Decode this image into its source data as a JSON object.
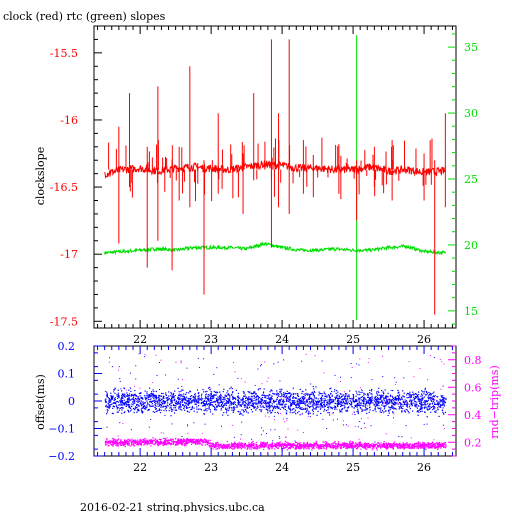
{
  "title": "clock (red) rtc (green) slopes",
  "footer": "2016-02-21 string.physics.ubc.ca",
  "colors": {
    "clock": "#ff0000",
    "rtc": "#00dd00",
    "offset": "#0000ff",
    "rtt": "#ff00ff",
    "axis": "#000000"
  },
  "chart_data": [
    {
      "type": "line",
      "panel": "top",
      "title": "clock (red) rtc (green) slopes",
      "xlabel": "",
      "ylabel": "clockslope",
      "xlim": [
        21.35,
        26.45
      ],
      "ylim": [
        -17.55,
        -15.3
      ],
      "x_ticks": [
        "22",
        "23",
        "24",
        "25",
        "26"
      ],
      "y_ticks": [
        "-15.5",
        "-16",
        "-16.5",
        "-17",
        "-17.5"
      ],
      "y2_ticks": [
        "15",
        "20",
        "25",
        "30",
        "35"
      ],
      "y2lim": [
        13.7,
        36.6
      ],
      "grid": false,
      "series": [
        {
          "name": "clock",
          "axis": "left",
          "x": [
            21.5,
            21.75,
            22.0,
            22.25,
            22.5,
            22.75,
            23.0,
            23.25,
            23.5,
            23.75,
            24.0,
            24.25,
            24.5,
            24.75,
            25.0,
            25.25,
            25.5,
            25.75,
            26.0,
            26.3
          ],
          "y": [
            -16.4,
            -16.37,
            -16.36,
            -16.38,
            -16.36,
            -16.35,
            -16.36,
            -16.37,
            -16.35,
            -16.33,
            -16.34,
            -16.36,
            -16.36,
            -16.37,
            -16.37,
            -16.35,
            -16.38,
            -16.37,
            -16.39,
            -16.38
          ],
          "spikes": [
            {
              "x": 21.7,
              "lo": -16.92,
              "hi": -16.05
            },
            {
              "x": 21.85,
              "lo": -16.5,
              "hi": -15.8
            },
            {
              "x": 22.1,
              "lo": -17.1,
              "hi": -16.2
            },
            {
              "x": 22.25,
              "lo": -16.9,
              "hi": -15.75
            },
            {
              "x": 22.45,
              "lo": -17.12,
              "hi": -16.3
            },
            {
              "x": 22.55,
              "lo": -16.6,
              "hi": -16.2
            },
            {
              "x": 22.7,
              "lo": -16.65,
              "hi": -15.6
            },
            {
              "x": 22.9,
              "lo": -17.3,
              "hi": -16.3
            },
            {
              "x": 23.1,
              "lo": -16.55,
              "hi": -15.95
            },
            {
              "x": 23.45,
              "lo": -16.7,
              "hi": -16.25
            },
            {
              "x": 23.6,
              "lo": -16.45,
              "hi": -15.8
            },
            {
              "x": 23.85,
              "lo": -16.95,
              "hi": -15.4
            },
            {
              "x": 23.95,
              "lo": -16.65,
              "hi": -15.95
            },
            {
              "x": 24.1,
              "lo": -16.7,
              "hi": -15.4
            },
            {
              "x": 24.3,
              "lo": -16.55,
              "hi": -16.15
            },
            {
              "x": 24.8,
              "lo": -16.55,
              "hi": -16.18
            },
            {
              "x": 25.05,
              "lo": -16.75,
              "hi": -16.3
            },
            {
              "x": 25.3,
              "lo": -16.5,
              "hi": -16.2
            },
            {
              "x": 25.55,
              "lo": -16.6,
              "hi": -16.15
            },
            {
              "x": 26.0,
              "lo": -16.6,
              "hi": -16.25
            },
            {
              "x": 26.15,
              "lo": -17.45,
              "hi": -16.3
            },
            {
              "x": 26.3,
              "lo": -16.65,
              "hi": -15.95
            }
          ]
        },
        {
          "name": "rtc",
          "axis": "right",
          "x": [
            21.5,
            21.75,
            22.0,
            22.25,
            22.5,
            22.75,
            23.0,
            23.25,
            23.5,
            23.75,
            24.0,
            24.25,
            24.5,
            24.75,
            25.0,
            25.25,
            25.5,
            25.75,
            26.0,
            26.3
          ],
          "y": [
            19.4,
            19.5,
            19.6,
            19.7,
            19.6,
            19.8,
            19.8,
            19.8,
            19.7,
            20.1,
            19.8,
            19.6,
            19.6,
            19.7,
            19.6,
            19.6,
            19.8,
            19.9,
            19.5,
            19.4
          ],
          "spikes": [
            {
              "x": 25.05,
              "lo": 14.3,
              "hi": 35.9
            }
          ]
        }
      ]
    },
    {
      "type": "scatter",
      "panel": "bottom",
      "xlabel": "",
      "ylabel": "offset(ms)",
      "y2label": "rnd−trip(ms)",
      "xlim": [
        21.35,
        26.45
      ],
      "ylim": [
        -0.2,
        0.2
      ],
      "y2lim": [
        0.1,
        0.9
      ],
      "x_ticks": [
        "22",
        "23",
        "24",
        "25",
        "26"
      ],
      "y_ticks": [
        "0.2",
        "0.1",
        "0",
        "−0.1",
        "−0.2"
      ],
      "y2_ticks": [
        "0.8",
        "0.6",
        "0.4",
        "0.2"
      ],
      "grid": false,
      "series": [
        {
          "name": "offset",
          "axis": "left",
          "x_range": [
            21.5,
            26.3
          ],
          "center": 0.0,
          "band": 0.06,
          "outlier_range": [
            -0.15,
            0.17
          ]
        },
        {
          "name": "rnd-trip",
          "axis": "right",
          "x_range": [
            21.5,
            26.3
          ],
          "centers": [
            [
              21.5,
              0.2
            ],
            [
              22.9,
              0.21
            ],
            [
              23.0,
              0.18
            ],
            [
              26.3,
              0.18
            ]
          ],
          "band": 0.035,
          "outlier_range": [
            0.15,
            0.85
          ]
        }
      ]
    }
  ]
}
